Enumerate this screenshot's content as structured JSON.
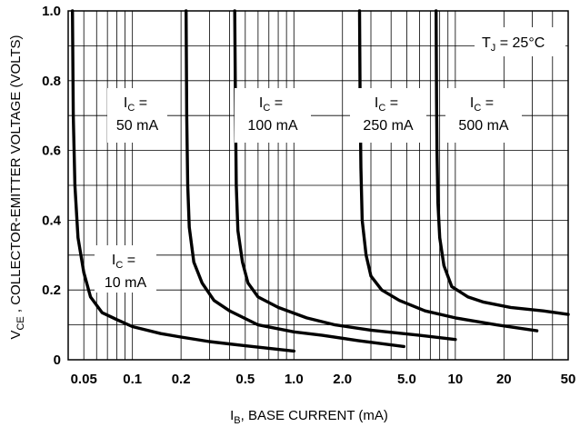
{
  "chart_data": {
    "type": "line",
    "title": "",
    "xscale": "log",
    "xlim": [
      0.04,
      50
    ],
    "ylim": [
      0,
      1.0
    ],
    "grid": true,
    "x_ticks": [
      {
        "v": 0.05,
        "label": "0.05"
      },
      {
        "v": 0.1,
        "label": "0.1"
      },
      {
        "v": 0.2,
        "label": "0.2"
      },
      {
        "v": 0.5,
        "label": "0.5"
      },
      {
        "v": 1,
        "label": "1.0"
      },
      {
        "v": 2,
        "label": "2.0"
      },
      {
        "v": 5,
        "label": "5.0"
      },
      {
        "v": 10,
        "label": "10"
      },
      {
        "v": 20,
        "label": "20"
      },
      {
        "v": 50,
        "label": "50"
      }
    ],
    "y_ticks": [
      {
        "v": 0,
        "label": "0"
      },
      {
        "v": 0.2,
        "label": "0.2"
      },
      {
        "v": 0.4,
        "label": "0.4"
      },
      {
        "v": 0.6,
        "label": "0.6"
      },
      {
        "v": 0.8,
        "label": "0.8"
      },
      {
        "v": 1.0,
        "label": "1.0"
      }
    ],
    "xlabel": {
      "pre": "I",
      "sub": "B",
      "post": ", BASE CURRENT (mA)"
    },
    "ylabel": {
      "pre": "V",
      "sub": "CE",
      "post": " , COLLECTOR-EMITTER VOLTAGE (VOLTS)"
    },
    "condition": {
      "pre": "T",
      "sub": "J",
      "post": " = 25°C"
    },
    "series": [
      {
        "name": "IC = 10 mA",
        "line1": {
          "pre": "I",
          "sub": "C",
          "post": " ="
        },
        "line2": "10 mA",
        "x": [
          0.0425,
          0.043,
          0.044,
          0.046,
          0.05,
          0.055,
          0.065,
          0.08,
          0.1,
          0.15,
          0.2,
          0.3,
          0.5,
          1.0
        ],
        "y": [
          1.0,
          0.7,
          0.5,
          0.35,
          0.25,
          0.18,
          0.135,
          0.115,
          0.095,
          0.075,
          0.065,
          0.052,
          0.04,
          0.025
        ]
      },
      {
        "name": "IC = 50 mA",
        "line1": {
          "pre": "I",
          "sub": "C",
          "post": " ="
        },
        "line2": "50 mA",
        "x": [
          0.215,
          0.217,
          0.22,
          0.225,
          0.24,
          0.27,
          0.32,
          0.4,
          0.6,
          1.0,
          1.5,
          2.5,
          4.8
        ],
        "y": [
          1.0,
          0.7,
          0.5,
          0.38,
          0.28,
          0.22,
          0.17,
          0.14,
          0.1,
          0.08,
          0.07,
          0.055,
          0.038
        ]
      },
      {
        "name": "IC = 100 mA",
        "line1": {
          "pre": "I",
          "sub": "C",
          "post": " ="
        },
        "line2": "100 mA",
        "x": [
          0.43,
          0.435,
          0.44,
          0.45,
          0.48,
          0.52,
          0.6,
          0.8,
          1.2,
          1.8,
          3.0,
          6.0,
          10.0
        ],
        "y": [
          1.0,
          0.7,
          0.5,
          0.37,
          0.28,
          0.22,
          0.18,
          0.15,
          0.12,
          0.1,
          0.085,
          0.07,
          0.058
        ]
      },
      {
        "name": "IC = 250 mA",
        "line1": {
          "pre": "I",
          "sub": "C",
          "post": " ="
        },
        "line2": "250 mA",
        "x": [
          2.55,
          2.57,
          2.6,
          2.65,
          2.8,
          3.0,
          3.5,
          4.5,
          6.5,
          10.0,
          18.0,
          32.0
        ],
        "y": [
          1.0,
          0.75,
          0.55,
          0.4,
          0.3,
          0.24,
          0.2,
          0.17,
          0.14,
          0.12,
          0.1,
          0.083
        ]
      },
      {
        "name": "IC = 500 mA",
        "line1": {
          "pre": "I",
          "sub": "C",
          "post": " ="
        },
        "line2": "500 mA",
        "x": [
          7.6,
          7.65,
          7.7,
          7.8,
          8.0,
          8.5,
          9.5,
          12.0,
          15.0,
          22.0,
          35.0,
          50.0
        ],
        "y": [
          1.0,
          0.75,
          0.6,
          0.45,
          0.35,
          0.27,
          0.21,
          0.18,
          0.165,
          0.15,
          0.14,
          0.13
        ]
      }
    ]
  }
}
